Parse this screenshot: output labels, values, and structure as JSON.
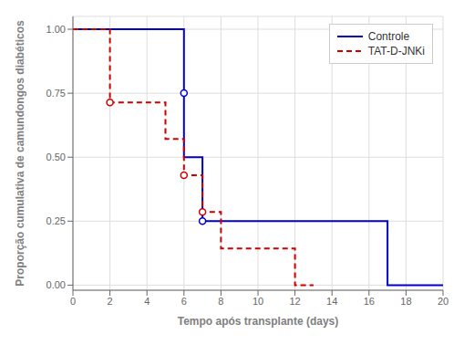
{
  "chart_data": {
    "type": "line",
    "title": "",
    "xlabel": "Tempo após transplante (days)",
    "ylabel": "Proporção cumulativa de camundongos diabéticos",
    "xlim": [
      0,
      20
    ],
    "ylim": [
      -0.02,
      1.05
    ],
    "xticks": [
      0,
      2,
      4,
      6,
      8,
      10,
      12,
      14,
      16,
      18,
      20
    ],
    "yticks": [
      {
        "value": 0.0,
        "label": "0.00"
      },
      {
        "value": 0.25,
        "label": "0.25"
      },
      {
        "value": 0.5,
        "label": "0.50"
      },
      {
        "value": 0.75,
        "label": "0.75"
      },
      {
        "value": 1.0,
        "label": "1.00"
      }
    ],
    "grid": true,
    "legend": "upper right",
    "series": [
      {
        "name": "Controle",
        "color": "#0000CC",
        "line_style": "solid",
        "x": [
          0,
          6,
          6,
          7,
          7,
          17,
          17,
          20
        ],
        "values": [
          1.0,
          1.0,
          0.5,
          0.5,
          0.25,
          0.25,
          0.0,
          0.0
        ],
        "censor_x": [
          6,
          7
        ],
        "censor_values": [
          0.75,
          0.25
        ]
      },
      {
        "name": "TAT-D-JNKi",
        "color": "#CC0000",
        "line_style": "dashed",
        "x": [
          0,
          2,
          2,
          5,
          5,
          6,
          6,
          7,
          7,
          8,
          8,
          12,
          12,
          13
        ],
        "values": [
          1.0,
          1.0,
          0.714,
          0.714,
          0.571,
          0.571,
          0.429,
          0.429,
          0.286,
          0.286,
          0.143,
          0.143,
          0.0,
          0.0
        ],
        "censor_x": [
          2,
          6,
          7
        ],
        "censor_values": [
          0.714,
          0.429,
          0.286
        ]
      }
    ]
  }
}
